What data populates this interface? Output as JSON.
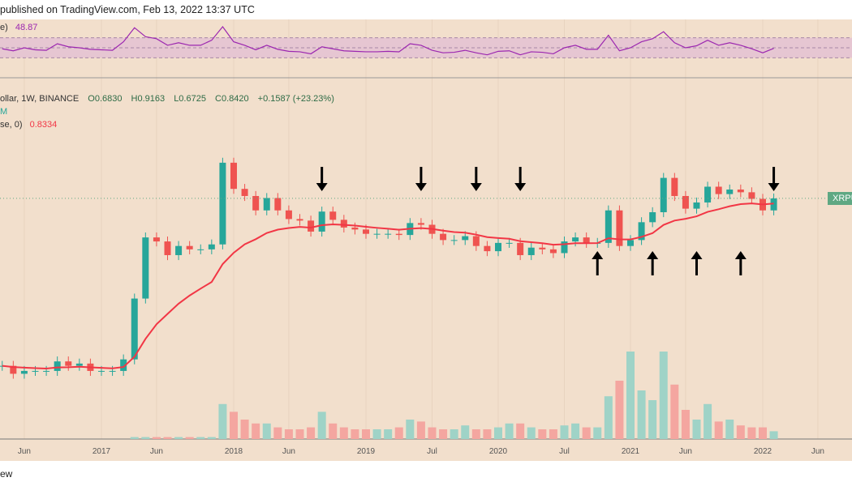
{
  "header": {
    "published": "published on TradingView.com, Feb 13, 2022 13:37 UTC"
  },
  "legend": {
    "rsi_label": "e)",
    "rsi_value": "48.87",
    "symbol": "ollar, 1W, BINANCE",
    "open": "O0.6830",
    "high": "H0.9163",
    "low": "L0.6725",
    "close": "C0.8420",
    "change": "+0.1587 (+23.23%)",
    "line2": "M",
    "ma_label": "se, 0)",
    "ma_value": "0.8334"
  },
  "price_tag": "XRPUS",
  "footer": "ew",
  "colors": {
    "background": "#f2dfcc",
    "up": "#26a69a",
    "down": "#ef5350",
    "ma": "#f23645",
    "rsi": "#9c27b0",
    "rsi_band": "#e6c6d2"
  },
  "chart_data": {
    "type": "line",
    "yscale": "log",
    "x_tick_labels": [
      "Jun",
      "2017",
      "Jun",
      "2018",
      "Jun",
      "2019",
      "Jul",
      "2020",
      "Jul",
      "2021",
      "Jun",
      "2022",
      "Jun"
    ],
    "x_tick_dates": [
      "2016-06",
      "2017-01",
      "2017-06",
      "2018-01",
      "2018-06",
      "2019-01",
      "2019-07",
      "2020-01",
      "2020-07",
      "2021-01",
      "2021-06",
      "2022-01",
      "2022-06"
    ],
    "series": [
      {
        "values_monthly_close_from": "2016-04",
        "values": [
          0.0075,
          0.006,
          0.0065,
          0.0065,
          0.0065,
          0.0085,
          0.0075,
          0.008,
          0.0065,
          0.0065,
          0.0065,
          0.009,
          0.05,
          0.28,
          0.25,
          0.17,
          0.22,
          0.2,
          0.2,
          0.23,
          2.3,
          1.1,
          0.9,
          0.6,
          0.85,
          0.6,
          0.47,
          0.45,
          0.33,
          0.58,
          0.46,
          0.37,
          0.35,
          0.31,
          0.31,
          0.31,
          0.3,
          0.42,
          0.4,
          0.31,
          0.26,
          0.26,
          0.29,
          0.22,
          0.19,
          0.24,
          0.24,
          0.17,
          0.21,
          0.2,
          0.18,
          0.25,
          0.28,
          0.24,
          0.24,
          0.6,
          0.22,
          0.26,
          0.43,
          0.57,
          1.5,
          0.9,
          0.63,
          0.75,
          1.17,
          0.95,
          1.08,
          1.0,
          0.83,
          0.6,
          0.84
        ]
      }
    ],
    "ma_last": 0.8334,
    "rsi_values": [
      48,
      44,
      50,
      46,
      45,
      58,
      52,
      50,
      47,
      46,
      45,
      62,
      90,
      72,
      68,
      55,
      60,
      55,
      55,
      65,
      92,
      62,
      55,
      46,
      55,
      47,
      43,
      42,
      38,
      52,
      48,
      44,
      43,
      42,
      42,
      43,
      42,
      58,
      55,
      45,
      40,
      41,
      45,
      40,
      36,
      43,
      44,
      36,
      42,
      41,
      38,
      50,
      55,
      47,
      47,
      75,
      44,
      50,
      62,
      68,
      82,
      60,
      50,
      54,
      65,
      55,
      60,
      55,
      48,
      40,
      48.87
    ],
    "rsi_bands": [
      30,
      70
    ],
    "volume_relative": [
      0,
      0,
      0,
      0,
      0,
      0,
      0,
      0,
      0,
      0,
      0,
      0,
      1,
      1,
      1,
      1,
      1,
      1,
      1,
      1,
      18,
      14,
      10,
      8,
      8,
      6,
      5,
      5,
      6,
      14,
      8,
      6,
      5,
      5,
      5,
      5,
      6,
      10,
      9,
      6,
      5,
      5,
      7,
      5,
      5,
      6,
      8,
      8,
      6,
      5,
      5,
      7,
      8,
      6,
      6,
      22,
      30,
      45,
      25,
      20,
      45,
      28,
      15,
      10,
      18,
      9,
      10,
      7,
      6,
      6,
      4
    ],
    "annotations": {
      "down_arrows": [
        "2018-09",
        "2019-06",
        "2019-11",
        "2020-03",
        "2022-02"
      ],
      "up_arrows": [
        "2020-10",
        "2021-03",
        "2021-07",
        "2021-11"
      ]
    }
  }
}
